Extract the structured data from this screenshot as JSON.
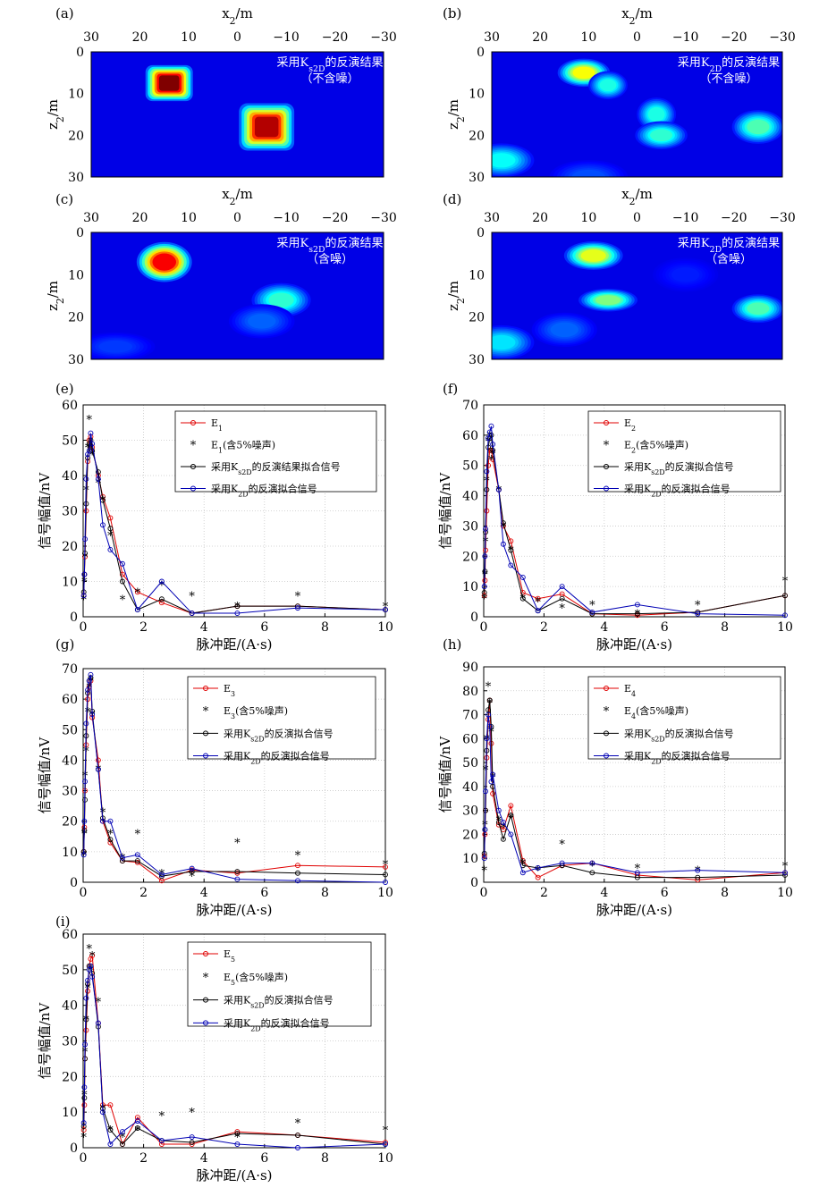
{
  "chart_data": [
    {
      "type": "heatmap",
      "panel": "(a)",
      "xlabel": "x2/m",
      "ylabel": "z2/m",
      "xticks": [
        30,
        20,
        10,
        0,
        -10,
        -20,
        -30
      ],
      "yticks": [
        0,
        10,
        20,
        30
      ],
      "xlim": [
        30,
        -30
      ],
      "ylim": [
        0,
        30
      ],
      "annotation": [
        "采用K_s2D的反演结果",
        "（不含噪）"
      ],
      "blobs": [
        {
          "x": 14,
          "z": 7.5,
          "sx": 3.6,
          "sz": 3.2,
          "v": 1.0,
          "square": true
        },
        {
          "x": -6,
          "z": 18,
          "sx": 4.2,
          "sz": 4.2,
          "v": 0.95,
          "square": true
        }
      ]
    },
    {
      "type": "heatmap",
      "panel": "(b)",
      "xlabel": "x2/m",
      "ylabel": "z2/m",
      "xticks": [
        30,
        20,
        10,
        0,
        -10,
        -20,
        -30
      ],
      "yticks": [
        0,
        10,
        20,
        30
      ],
      "xlim": [
        30,
        -30
      ],
      "ylim": [
        0,
        30
      ],
      "annotation": [
        "采用K_2D的反演结果",
        "（不含噪）"
      ],
      "blobs": [
        {
          "x": 11,
          "z": 5,
          "sx": 4,
          "sz": 2.5,
          "v": 0.62
        },
        {
          "x": 6,
          "z": 8,
          "sx": 3,
          "sz": 2.5,
          "v": 0.4
        },
        {
          "x": -4,
          "z": 15,
          "sx": 3,
          "sz": 3,
          "v": 0.4
        },
        {
          "x": -5,
          "z": 20,
          "sx": 4,
          "sz": 2.5,
          "v": 0.42
        },
        {
          "x": -25,
          "z": 18,
          "sx": 4,
          "sz": 3,
          "v": 0.45
        },
        {
          "x": 28,
          "z": 26,
          "sx": 5,
          "sz": 3,
          "v": 0.38
        },
        {
          "x": 10,
          "z": 30,
          "sx": 6,
          "sz": 3,
          "v": 0.2
        }
      ]
    },
    {
      "type": "heatmap",
      "panel": "(c)",
      "xlabel": "x2/m",
      "ylabel": "z2/m",
      "xticks": [
        30,
        20,
        10,
        0,
        -10,
        -20,
        -30
      ],
      "yticks": [
        0,
        10,
        20,
        30
      ],
      "xlim": [
        30,
        -30
      ],
      "ylim": [
        0,
        30
      ],
      "annotation": [
        "采用K_s2D的反演结果",
        "（含噪）"
      ],
      "blobs": [
        {
          "x": 15,
          "z": 7,
          "sx": 4.2,
          "sz": 3.5,
          "v": 0.88
        },
        {
          "x": -9,
          "z": 16,
          "sx": 4.5,
          "sz": 3,
          "v": 0.42
        },
        {
          "x": -5,
          "z": 21,
          "sx": 5,
          "sz": 3,
          "v": 0.22
        },
        {
          "x": 25,
          "z": 27,
          "sx": 6,
          "sz": 2.5,
          "v": 0.18
        }
      ]
    },
    {
      "type": "heatmap",
      "panel": "(d)",
      "xlabel": "x2/m",
      "ylabel": "z2/m",
      "xticks": [
        30,
        20,
        10,
        0,
        -10,
        -20,
        -30
      ],
      "yticks": [
        0,
        10,
        20,
        30
      ],
      "xlim": [
        30,
        -30
      ],
      "ylim": [
        0,
        30
      ],
      "annotation": [
        "采用K_2D的反演结果",
        "（含噪）"
      ],
      "blobs": [
        {
          "x": 9,
          "z": 5.5,
          "sx": 4.5,
          "sz": 2.5,
          "v": 0.6
        },
        {
          "x": 6,
          "z": 16,
          "sx": 4.5,
          "sz": 2,
          "v": 0.5
        },
        {
          "x": -25,
          "z": 18,
          "sx": 4,
          "sz": 2.5,
          "v": 0.45
        },
        {
          "x": 28,
          "z": 26,
          "sx": 5,
          "sz": 3,
          "v": 0.35
        },
        {
          "x": 15,
          "z": 23,
          "sx": 5,
          "sz": 3,
          "v": 0.22
        },
        {
          "x": -10,
          "z": 10,
          "sx": 5,
          "sz": 3,
          "v": 0.15
        }
      ]
    },
    {
      "type": "line",
      "panel": "(e)",
      "xlabel": "脉冲距/(A·s)",
      "ylabel": "信号幅值/nV",
      "xlim": [
        0,
        10
      ],
      "ylim": [
        0,
        60
      ],
      "yticks": [
        0,
        10,
        20,
        30,
        40,
        50,
        60
      ],
      "grid": true,
      "legend_position": "top-right",
      "legend": [
        "E_1",
        "E_1(含5%噪声)",
        "采用K_s2D的反演结果拟合信号",
        "采用K_2D的反演拟合信号"
      ],
      "x": [
        0.02,
        0.04,
        0.06,
        0.1,
        0.15,
        0.2,
        0.25,
        0.3,
        0.5,
        0.65,
        0.9,
        1.3,
        1.8,
        2.6,
        3.6,
        5.1,
        7.1,
        10
      ],
      "series": [
        {
          "name": "E_1",
          "color": "#e00000",
          "values": [
            6,
            12,
            17,
            30,
            44,
            50,
            51,
            48,
            40,
            34,
            28,
            12,
            7,
            4,
            1,
            3,
            3,
            2
          ]
        },
        {
          "name": "E_1(含5%噪声)",
          "color": "#000000",
          "values": [
            5,
            10,
            17,
            36,
            48,
            56,
            48,
            46,
            38,
            33,
            23,
            5,
            7,
            9,
            6,
            3,
            6,
            3
          ]
        },
        {
          "name": "采用K_s2D的反演结果拟合信号",
          "color": "#000000",
          "values": [
            7,
            12,
            18,
            32,
            45,
            49,
            50,
            47,
            41,
            33,
            25,
            10,
            2,
            5,
            1,
            3,
            3,
            2
          ]
        },
        {
          "name": "采用K_2D的反演拟合信号",
          "color": "#0000b4",
          "values": [
            6,
            12,
            22,
            39,
            46,
            47,
            52,
            49,
            39,
            26,
            19,
            15,
            2,
            10,
            1,
            1,
            2.5,
            2
          ]
        }
      ]
    },
    {
      "type": "line",
      "panel": "(f)",
      "xlabel": "脉冲距/(A·s)",
      "ylabel": "信号幅值/nV",
      "xlim": [
        0,
        10
      ],
      "ylim": [
        0,
        70
      ],
      "yticks": [
        0,
        10,
        20,
        30,
        40,
        50,
        60,
        70
      ],
      "grid": true,
      "legend_position": "top-right",
      "legend": [
        "E_2",
        "E_2(含5%噪声)",
        "采用K_s2D的反演拟合信号",
        "采用K_2D的反演拟合信号"
      ],
      "x": [
        0.02,
        0.04,
        0.06,
        0.1,
        0.15,
        0.2,
        0.25,
        0.3,
        0.5,
        0.65,
        0.9,
        1.3,
        1.8,
        2.6,
        3.6,
        5.1,
        7.1,
        10
      ],
      "series": [
        {
          "name": "E_2",
          "color": "#e00000",
          "values": [
            7,
            12,
            22,
            35,
            50,
            55,
            55,
            52,
            42,
            30,
            25,
            8,
            6,
            7.5,
            1,
            0.5,
            1.5,
            7
          ]
        },
        {
          "name": "E_2(含5%噪声)",
          "color": "#000000",
          "values": [
            6,
            14,
            25,
            45,
            58,
            60,
            52,
            54,
            42,
            30,
            22,
            6,
            5,
            3,
            4,
            1,
            4,
            12
          ]
        },
        {
          "name": "采用K_s2D的反演拟合信号",
          "color": "#000000",
          "values": [
            8,
            15,
            28,
            42,
            56,
            59,
            60,
            55,
            42,
            31,
            22,
            6,
            2,
            6,
            1,
            1,
            1.5,
            7
          ]
        },
        {
          "name": "采用K_2D的反演拟合信号",
          "color": "#0000b4",
          "values": [
            10,
            20,
            29,
            48,
            59,
            61,
            63,
            57,
            42,
            24,
            17,
            13,
            2,
            10,
            1.5,
            4,
            1,
            0.5
          ]
        }
      ]
    },
    {
      "type": "line",
      "panel": "(g)",
      "xlabel": "脉冲距/(A·s)",
      "ylabel": "信号幅值/nV",
      "xlim": [
        0,
        10
      ],
      "ylim": [
        0,
        70
      ],
      "yticks": [
        0,
        10,
        20,
        30,
        40,
        50,
        60,
        70
      ],
      "grid": true,
      "legend_position": "top-right",
      "legend": [
        "E_3",
        "E_3(含5%噪声)",
        "采用K_s2D的反演拟合信号",
        "采用K_2D的反演拟合信号"
      ],
      "x": [
        0.02,
        0.04,
        0.06,
        0.1,
        0.15,
        0.2,
        0.25,
        0.3,
        0.5,
        0.65,
        0.9,
        1.3,
        1.8,
        2.6,
        3.6,
        5.1,
        7.1,
        10
      ],
      "series": [
        {
          "name": "E_3",
          "color": "#e00000",
          "values": [
            10,
            18,
            30,
            45,
            60,
            64,
            66,
            54,
            40,
            20,
            13,
            7,
            6.5,
            0.5,
            4,
            3,
            5.5,
            5
          ]
        },
        {
          "name": "E_3(含5%噪声)",
          "color": "#000000",
          "values": [
            9,
            16,
            35,
            43,
            56,
            64,
            66,
            55,
            37,
            23,
            16,
            8,
            16,
            3,
            2,
            13,
            9,
            6
          ]
        },
        {
          "name": "采用K_s2D的反演拟合信号",
          "color": "#000000",
          "values": [
            10,
            17,
            27,
            48,
            62,
            66,
            67,
            56,
            37,
            21,
            14,
            7,
            7,
            2,
            3.5,
            3.5,
            3,
            2.5
          ]
        },
        {
          "name": "采用K_2D的反演拟合信号",
          "color": "#0000b4",
          "values": [
            9,
            20,
            33,
            52,
            63,
            66,
            68,
            55,
            37,
            20,
            20,
            8,
            9,
            2.5,
            4.5,
            1,
            0.5,
            0
          ]
        }
      ]
    },
    {
      "type": "line",
      "panel": "(h)",
      "xlabel": "脉冲距/(A·s)",
      "ylabel": "信号幅值/nV",
      "xlim": [
        0,
        10
      ],
      "ylim": [
        0,
        90
      ],
      "yticks": [
        0,
        10,
        20,
        30,
        40,
        50,
        60,
        70,
        80,
        90
      ],
      "grid": true,
      "legend_position": "top-right",
      "legend": [
        "E_4",
        "E_4(含5%噪声)",
        "采用K_s2D的反演拟合信号",
        "采用K_2D的反演拟合信号"
      ],
      "x": [
        0.02,
        0.04,
        0.06,
        0.1,
        0.15,
        0.2,
        0.25,
        0.3,
        0.5,
        0.65,
        0.9,
        1.3,
        1.8,
        2.6,
        3.6,
        5.1,
        7.1,
        10
      ],
      "series": [
        {
          "name": "E_4",
          "color": "#e00000",
          "values": [
            11,
            20,
            30,
            52,
            68,
            76,
            58,
            37,
            24,
            22,
            32,
            9,
            2,
            7,
            8,
            3,
            1,
            4
          ]
        },
        {
          "name": "E_4(含5%噪声)",
          "color": "#000000",
          "values": [
            5,
            24,
            47,
            60,
            82,
            75,
            63,
            44,
            26,
            23,
            27,
            8,
            5,
            16,
            7,
            6,
            5,
            7
          ]
        },
        {
          "name": "采用K_s2D的反演拟合信号",
          "color": "#000000",
          "values": [
            12,
            22,
            30,
            55,
            72,
            76,
            65,
            40,
            25,
            18,
            28,
            7,
            6,
            7,
            4,
            2,
            2,
            3
          ]
        },
        {
          "name": "采用K_2D的反演拟合信号",
          "color": "#0000b4",
          "values": [
            10,
            22,
            38,
            60,
            70,
            65,
            42,
            45,
            30,
            25,
            20,
            4,
            6,
            8,
            8,
            4,
            5,
            4
          ]
        }
      ]
    },
    {
      "type": "line",
      "panel": "(i)",
      "xlabel": "脉冲距/(A·s)",
      "ylabel": "信号幅值/nV",
      "xlim": [
        0,
        10
      ],
      "ylim": [
        0,
        60
      ],
      "yticks": [
        0,
        10,
        20,
        30,
        40,
        50,
        60
      ],
      "grid": true,
      "legend_position": "top-right",
      "legend": [
        "E_5",
        "E_5(含5%噪声)",
        "采用K_s2D的反演拟合信号",
        "采用K_2D的反演拟合信号"
      ],
      "x": [
        0.02,
        0.04,
        0.06,
        0.1,
        0.15,
        0.2,
        0.25,
        0.3,
        0.5,
        0.65,
        0.9,
        1.3,
        1.8,
        2.6,
        3.6,
        5.1,
        7.1,
        10
      ],
      "series": [
        {
          "name": "E_5",
          "color": "#e00000",
          "values": [
            5,
            12,
            25,
            33,
            44,
            51,
            53,
            54,
            35,
            12,
            12,
            1,
            8.5,
            1,
            1,
            4.5,
            3.5,
            1.5
          ]
        },
        {
          "name": "E_5(含5%噪声)",
          "color": "#000000",
          "values": [
            3,
            15,
            27,
            36,
            45,
            56,
            50,
            54,
            41,
            11,
            5,
            3,
            5,
            9,
            10,
            3,
            7,
            5
          ]
        },
        {
          "name": "采用K_s2D的反演拟合信号",
          "color": "#000000",
          "values": [
            6,
            14,
            25,
            36,
            46,
            51,
            51,
            49,
            34,
            11,
            5,
            1,
            5.5,
            2,
            1.5,
            4,
            3.5,
            1
          ]
        },
        {
          "name": "采用K_2D的反演拟合信号",
          "color": "#0000b4",
          "values": [
            7,
            17,
            29,
            42,
            47,
            50,
            51,
            48,
            35,
            10,
            1,
            4.5,
            7.5,
            2,
            3,
            1,
            0,
            1
          ]
        }
      ]
    }
  ]
}
